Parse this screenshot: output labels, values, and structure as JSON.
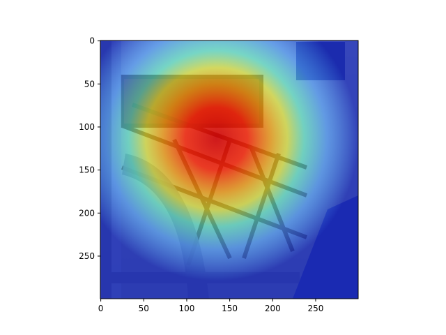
{
  "figure": {
    "image_subject": "paddle-wheel",
    "overlay": "jet-colormap-heatmap",
    "colors": {
      "frame": "#000000",
      "water": "#8fa3b8",
      "heat_hot": "#e00000",
      "heat_cold": "#1020c0"
    }
  },
  "chart_data": {
    "type": "heatmap",
    "title": "",
    "xlabel": "",
    "ylabel": "",
    "xlim": [
      0,
      299
    ],
    "ylim": [
      299,
      0
    ],
    "grid": false,
    "x_ticks": [
      0,
      50,
      100,
      150,
      200,
      250
    ],
    "y_ticks": [
      0,
      50,
      100,
      150,
      200,
      250
    ],
    "hotspot_center": [
      115,
      150
    ],
    "hotspot_radius": 140
  }
}
